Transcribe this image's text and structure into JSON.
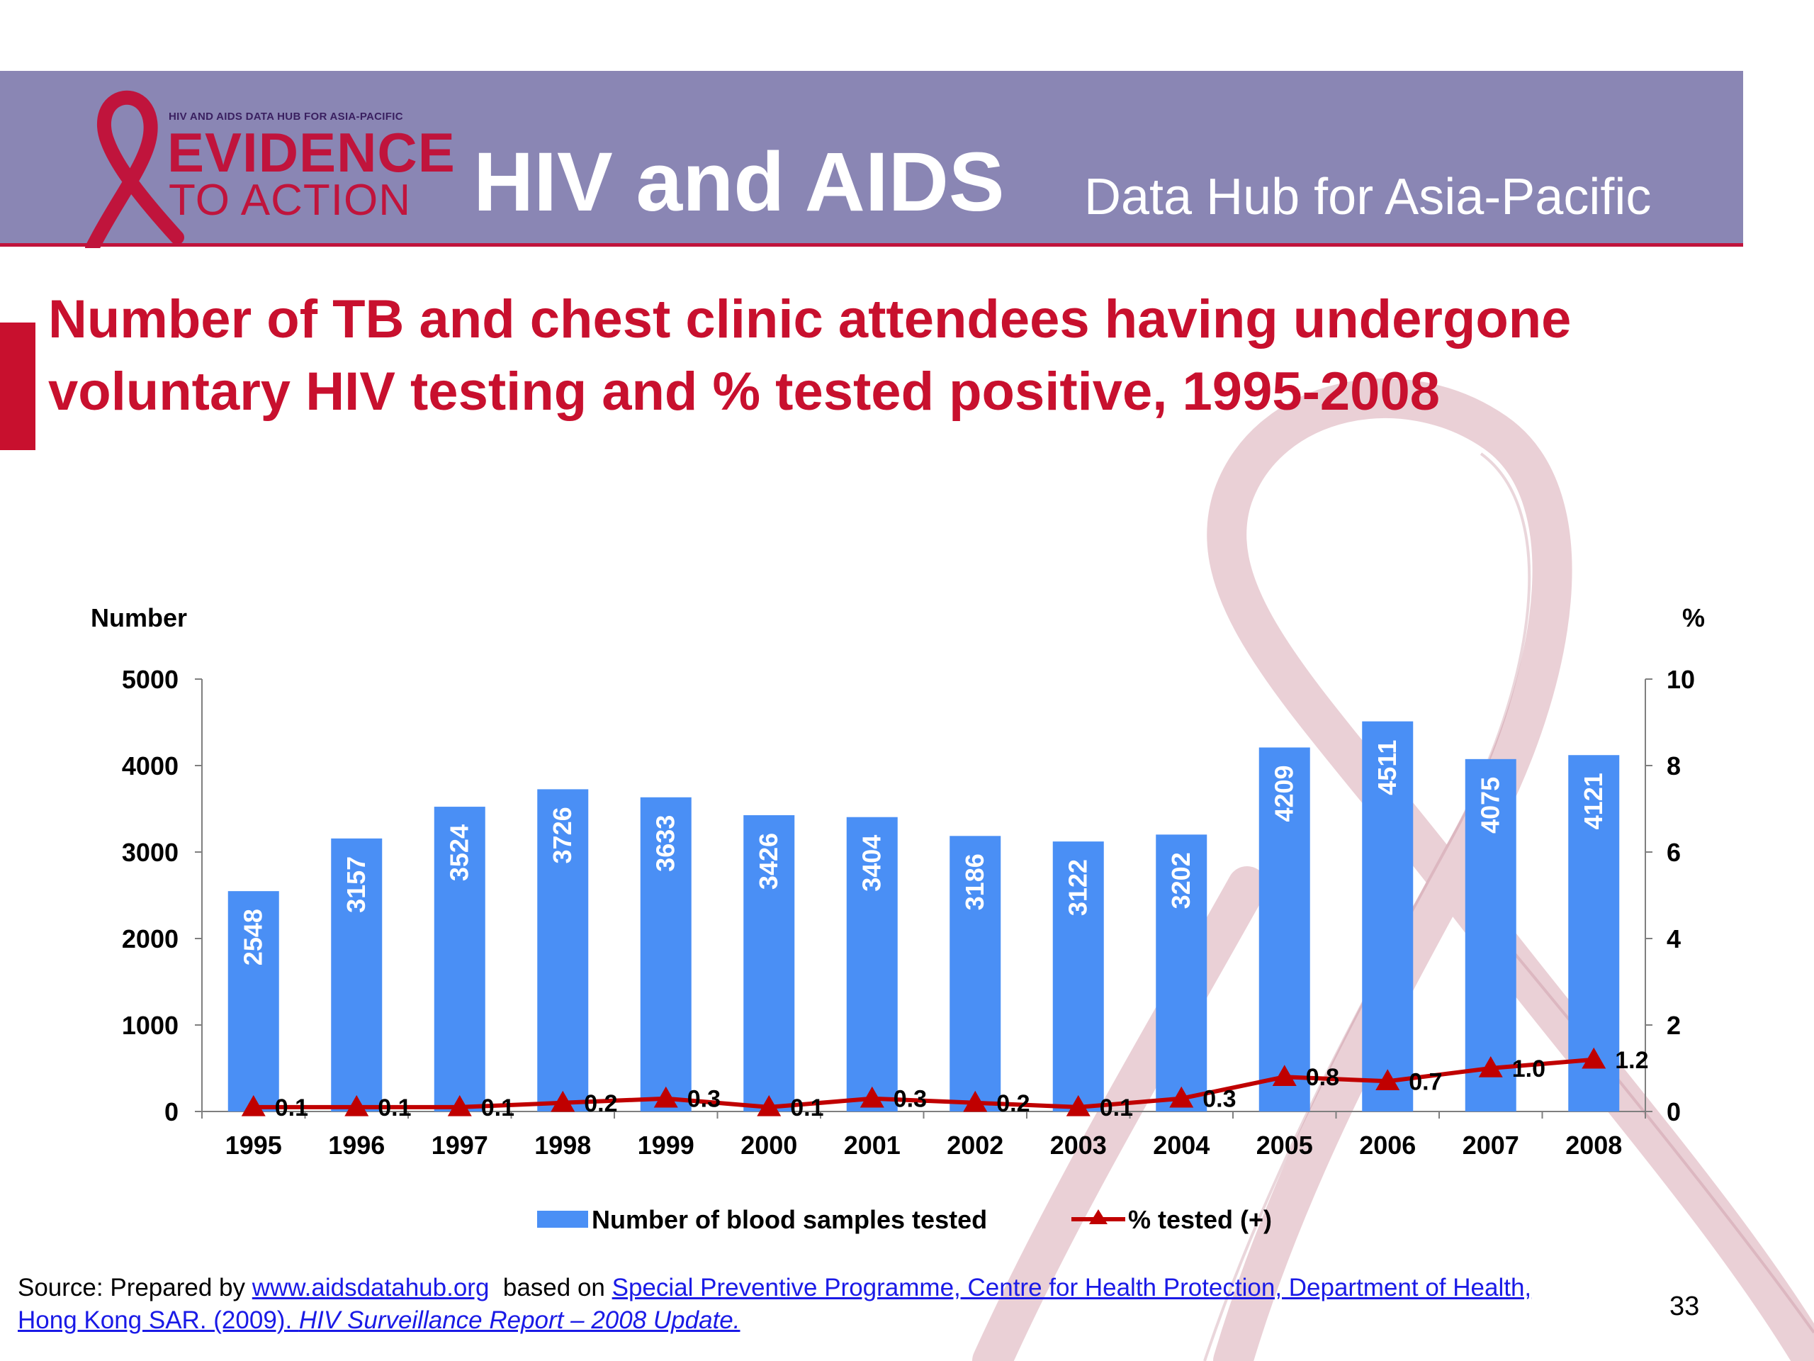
{
  "header": {
    "logo_small_text": "HIV AND AIDS DATA HUB FOR ASIA-PACIFIC",
    "logo_line1": "EVIDENCE",
    "logo_line2": "TO ACTION",
    "title": "HIV and AIDS",
    "subtitle": "Data Hub for Asia-Pacific"
  },
  "slide": {
    "title_line1": "Number of TB and chest clinic attendees having undergone",
    "title_line2": "voluntary HIV testing and % tested positive, 1995-2008",
    "page_number": "33"
  },
  "source": {
    "prefix": "Source: Prepared by ",
    "link1": "www.aidsdatahub.org",
    "middle": "  based on ",
    "link2_line1": "Special Preventive Programme, Centre for Health Protection, Department of Health,",
    "link2_line2_plain": "Hong Kong SAR. (2009). ",
    "link2_line2_italic": "HIV Surveillance Report – 2008 Update."
  },
  "colors": {
    "header_bg": "#8a86b4",
    "accent_red": "#c8102e",
    "bar_blue": "#4a8ff5",
    "line_dark_red": "#c00000",
    "link_blue": "#1a1ae6"
  },
  "chart_data": {
    "type": "bar",
    "categories": [
      "1995",
      "1996",
      "1997",
      "1998",
      "1999",
      "2000",
      "2001",
      "2002",
      "2003",
      "2004",
      "2005",
      "2006",
      "2007",
      "2008"
    ],
    "series": [
      {
        "name": "Number of blood samples tested",
        "type": "bar",
        "axis": "left",
        "values": [
          2548,
          3157,
          3524,
          3726,
          3633,
          3426,
          3404,
          3186,
          3122,
          3202,
          4209,
          4511,
          4075,
          4121
        ],
        "labels": [
          "2548",
          "3157",
          "3524",
          "3726",
          "3633",
          "3426",
          "3404",
          "3186",
          "3122",
          "3202",
          "4209",
          "4511",
          "4075",
          "4121"
        ]
      },
      {
        "name": "% tested (+)",
        "type": "line",
        "axis": "right",
        "marker": "triangle",
        "values": [
          0.1,
          0.1,
          0.1,
          0.2,
          0.3,
          0.1,
          0.3,
          0.2,
          0.1,
          0.3,
          0.8,
          0.7,
          1.0,
          1.2
        ],
        "labels": [
          "0.1",
          "0.1",
          "0.1",
          "0.2",
          "0.3",
          "0.1",
          "0.3",
          "0.2",
          "0.1",
          "0.3",
          "0.8",
          "0.7",
          "1.0",
          "1.2"
        ]
      }
    ],
    "ylabel": "Number",
    "y2label": "%",
    "ylim": [
      0,
      5000
    ],
    "y2lim": [
      0,
      10
    ],
    "yticks": [
      "0",
      "1000",
      "2000",
      "3000",
      "4000",
      "5000"
    ],
    "y2ticks": [
      "0",
      "2",
      "4",
      "6",
      "8",
      "10"
    ],
    "grid": false,
    "legend_position": "bottom"
  }
}
